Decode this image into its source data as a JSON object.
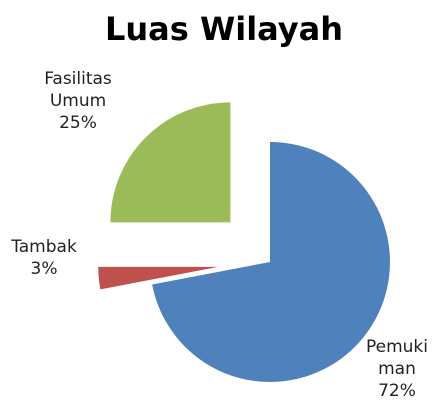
{
  "chart_data": {
    "type": "pie",
    "title": "Luas Wilayah",
    "categories": [
      "Pemukiman",
      "Tambak",
      "Fasilitas Umum"
    ],
    "values": [
      72,
      3,
      25
    ],
    "value_labels": [
      "72%",
      "3%",
      "25%"
    ],
    "colors": [
      "#4f81bd",
      "#c0504d",
      "#9bbb59"
    ]
  }
}
